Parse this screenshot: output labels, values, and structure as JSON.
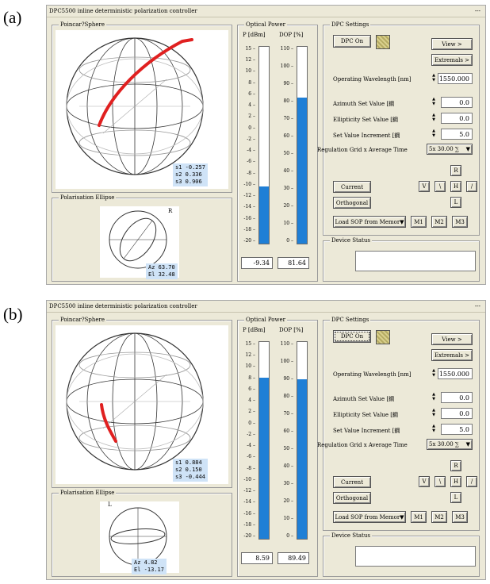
{
  "panels": [
    {
      "label": "(a)",
      "window_title": "DPC5500 inline deterministic polarization controller",
      "title_dash": "---",
      "poincare": {
        "title": "Poincar?Sphere",
        "stokes": [
          "s1 -0.257",
          "s2  0.336",
          "s3  0.906"
        ]
      },
      "ellipse": {
        "title": "Polarisation Ellipse",
        "handedness": "R",
        "az": "Az  63.70",
        "el": "El  32.48"
      },
      "optical_power": {
        "title": "Optical Power",
        "p_header": "P [dBm]",
        "dop_header": "DOP [%]",
        "p_scale": [
          "15",
          "12",
          "10",
          "8",
          "6",
          "4",
          "2",
          "0",
          "-2",
          "-4",
          "-6",
          "-8",
          "-10",
          "-12",
          "-14",
          "-16",
          "-18",
          "-20"
        ],
        "dop_scale": [
          "110",
          "100",
          "90",
          "80",
          "70",
          "60",
          "50",
          "40",
          "30",
          "20",
          "10",
          "0"
        ],
        "p_value": "-9.34",
        "dop_value": "81.64",
        "p_fill_fraction": 0.29,
        "dop_fill_fraction": 0.74
      },
      "settings": {
        "title": "DPC Settings",
        "dpc_on": "DPC On",
        "view": "View >",
        "extremals": "Extremals >",
        "wavelength_label": "Operating Wavelength [nm]",
        "wavelength": "1550.000",
        "azimuth_label": "Azimuth Set Value [鋼",
        "azimuth": "0.0",
        "ellipticity_label": "Ellipticity Set Value [鋼",
        "ellipticity": "0.0",
        "increment_label": "Set Value Increment [鋼",
        "increment": "5.0",
        "grid_label": "Regulation Grid x Average Time",
        "grid_value": "5x  30.00 ∑",
        "current": "Current",
        "orthogonal": "Orthogonal",
        "load_sop": "Load SOP from Memor",
        "r": "R",
        "v": "V",
        "backslash": "\\",
        "h": "H",
        "slash": "/",
        "l": "L",
        "m1": "M1",
        "m2": "M2",
        "m3": "M3"
      },
      "device_status": {
        "title": "Device Status"
      }
    },
    {
      "label": "(b)",
      "window_title": "DPC5500 inline deterministic polarization controller",
      "title_dash": "---",
      "poincare": {
        "title": "Poincar?Sphere",
        "stokes": [
          "s1  0.884",
          "s2  0.150",
          "s3 -0.444"
        ]
      },
      "ellipse": {
        "title": "Polarisation Ellipse",
        "handedness": "L",
        "az": "Az   4.82",
        "el": "El -13.17"
      },
      "optical_power": {
        "title": "Optical Power",
        "p_header": "P [dBm]",
        "dop_header": "DOP [%]",
        "p_scale": [
          "15",
          "12",
          "10",
          "8",
          "6",
          "4",
          "2",
          "0",
          "-2",
          "-4",
          "-6",
          "-8",
          "-10",
          "-12",
          "-14",
          "-16",
          "-18",
          "-20"
        ],
        "dop_scale": [
          "110",
          "100",
          "90",
          "80",
          "70",
          "60",
          "50",
          "40",
          "30",
          "20",
          "10",
          "0"
        ],
        "p_value": "8.59",
        "dop_value": "89.49",
        "p_fill_fraction": 0.82,
        "dop_fill_fraction": 0.81
      },
      "settings": {
        "title": "DPC Settings",
        "dpc_on": "DPC On",
        "view": "View >",
        "extremals": "Extremals >",
        "wavelength_label": "Operating Wavelength [nm]",
        "wavelength": "1550.000",
        "azimuth_label": "Azimuth Set Value [鋼",
        "azimuth": "0.0",
        "ellipticity_label": "Ellipticity Set Value [鋼",
        "ellipticity": "0.0",
        "increment_label": "Set Value Increment [鋼",
        "increment": "5.0",
        "grid_label": "Regulation Grid x Average Time",
        "grid_value": "5x  30.00 ∑",
        "current": "Current",
        "orthogonal": "Orthogonal",
        "load_sop": "Load SOP from Memor",
        "r": "R",
        "v": "V",
        "backslash": "\\",
        "h": "H",
        "slash": "/",
        "l": "L",
        "m1": "M1",
        "m2": "M2",
        "m3": "M3"
      },
      "device_status": {
        "title": "Device Status"
      }
    }
  ]
}
